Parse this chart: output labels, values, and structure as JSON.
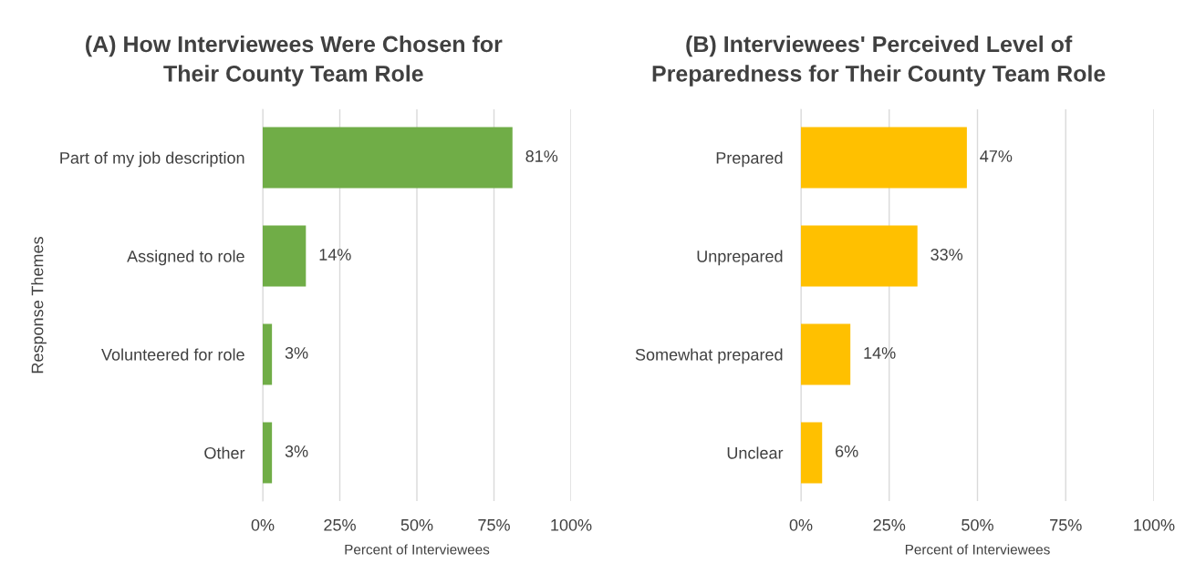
{
  "chart_data": [
    {
      "type": "bar",
      "orientation": "horizontal",
      "title": "(A) How Interviewees Were Chosen for\nTheir County Team Role",
      "xlabel": "Percent of Interviewees",
      "ylabel": "Response Themes",
      "categories": [
        "Part of my job description",
        "Assigned to role",
        "Volunteered for role",
        "Other"
      ],
      "values": [
        81,
        14,
        3,
        3
      ],
      "color": "#70ad47",
      "data_labels": true,
      "grid": "x",
      "xlim": [
        0,
        100
      ],
      "xticks": [
        {
          "value": 0,
          "label": "0%"
        },
        {
          "value": 25,
          "label": "25%"
        },
        {
          "value": 50,
          "label": "50%"
        },
        {
          "value": 75,
          "label": "75%"
        },
        {
          "value": 100,
          "label": "100%"
        }
      ],
      "value_labels": [
        "81%",
        "14%",
        "3%",
        "3%"
      ]
    },
    {
      "type": "bar",
      "orientation": "horizontal",
      "title": "(B) Interviewees' Perceived Level of\nPreparedness for Their County Team Role",
      "xlabel": "Percent of Interviewees",
      "categories": [
        "Prepared",
        "Unprepared",
        "Somewhat prepared",
        "Unclear"
      ],
      "values": [
        47,
        33,
        14,
        6
      ],
      "color": "#ffc000",
      "data_labels": true,
      "grid": "x",
      "xlim": [
        0,
        100
      ],
      "xticks": [
        {
          "value": 0,
          "label": "0%"
        },
        {
          "value": 25,
          "label": "25%"
        },
        {
          "value": 50,
          "label": "50%"
        },
        {
          "value": 75,
          "label": "75%"
        },
        {
          "value": 100,
          "label": "100%"
        }
      ],
      "value_labels": [
        "47%",
        "33%",
        "14%",
        "6%"
      ]
    }
  ]
}
